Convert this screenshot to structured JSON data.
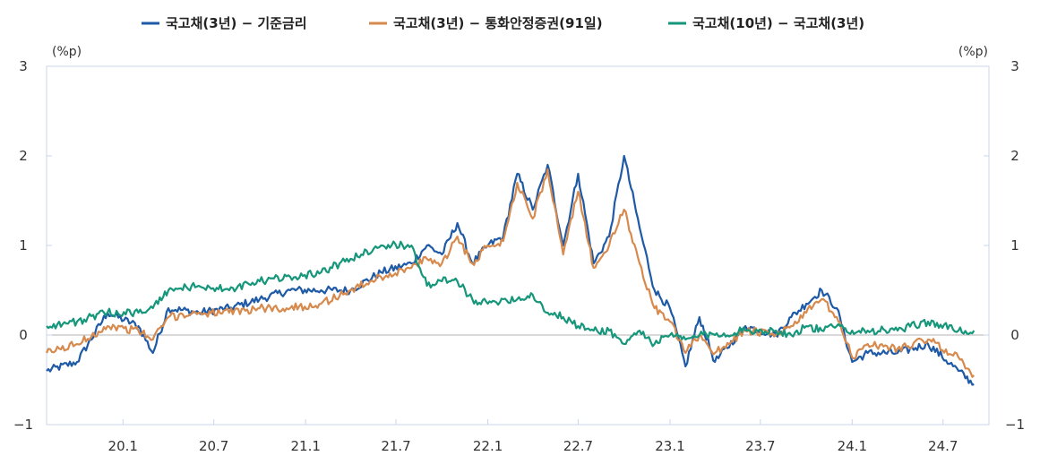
{
  "chart_data": {
    "type": "line",
    "title": "",
    "left_unit": "(%p)",
    "right_unit": "(%p)",
    "ylim": [
      -1,
      3
    ],
    "y_ticks_left": [
      "−1",
      "0",
      "1",
      "2",
      "3"
    ],
    "y_ticks_right": [
      "−1",
      "0",
      "1",
      "2",
      "3"
    ],
    "x_ticks": [
      "20.1",
      "20.7",
      "21.1",
      "21.7",
      "22.1",
      "22.7",
      "23.1",
      "23.7",
      "24.1",
      "24.7"
    ],
    "legend_position": "top",
    "x": [
      "2019-08",
      "2019-10",
      "2019-12",
      "2020-02",
      "2020-03",
      "2020-04",
      "2020-06",
      "2020-08",
      "2020-10",
      "2020-12",
      "2021-02",
      "2021-04",
      "2021-06",
      "2021-08",
      "2021-09",
      "2021-10",
      "2021-11",
      "2021-12",
      "2022-01",
      "2022-02",
      "2022-03",
      "2022-04",
      "2022-05",
      "2022-06",
      "2022-07",
      "2022-08",
      "2022-09",
      "2022-10",
      "2022-11",
      "2022-12",
      "2023-01",
      "2023-02",
      "2023-03",
      "2023-04",
      "2023-06",
      "2023-08",
      "2023-09",
      "2023-10",
      "2023-11",
      "2023-12",
      "2024-01",
      "2024-02",
      "2024-04",
      "2024-06",
      "2024-08",
      "2024-09"
    ],
    "series": [
      {
        "name": "국고채(3년) − 기준금리",
        "color": "#1f5aa6",
        "values": [
          -0.4,
          -0.3,
          0.25,
          0.1,
          -0.2,
          0.3,
          0.25,
          0.3,
          0.4,
          0.5,
          0.5,
          0.5,
          0.7,
          0.8,
          1.0,
          0.9,
          1.25,
          0.8,
          1.0,
          1.1,
          1.8,
          1.4,
          1.9,
          1.0,
          1.8,
          0.8,
          1.1,
          2.0,
          1.2,
          0.5,
          0.3,
          -0.35,
          0.2,
          -0.3,
          0.1,
          0.0,
          0.2,
          0.35,
          0.5,
          0.3,
          -0.3,
          -0.2,
          -0.2,
          -0.1,
          -0.4,
          -0.55
        ]
      },
      {
        "name": "국고채(3년) − 통화안정증권(91일)",
        "color": "#d78a4e",
        "values": [
          -0.2,
          -0.1,
          0.1,
          0.05,
          -0.05,
          0.2,
          0.25,
          0.25,
          0.3,
          0.3,
          0.35,
          0.5,
          0.65,
          0.75,
          0.85,
          0.8,
          1.1,
          0.8,
          1.0,
          1.05,
          1.7,
          1.3,
          1.85,
          0.9,
          1.6,
          0.75,
          1.0,
          1.4,
          0.8,
          0.3,
          0.15,
          -0.2,
          0.0,
          -0.2,
          0.05,
          0.0,
          0.1,
          0.25,
          0.4,
          0.2,
          -0.25,
          -0.1,
          -0.15,
          -0.05,
          -0.25,
          -0.45
        ]
      },
      {
        "name": "국고채(10년) − 국고채(3년)",
        "color": "#16967a",
        "values": [
          0.1,
          0.15,
          0.25,
          0.25,
          0.3,
          0.5,
          0.55,
          0.5,
          0.6,
          0.65,
          0.7,
          0.85,
          1.0,
          1.0,
          0.55,
          0.6,
          0.6,
          0.4,
          0.35,
          0.4,
          0.4,
          0.45,
          0.25,
          0.2,
          0.1,
          0.05,
          0.05,
          -0.1,
          0.05,
          -0.1,
          0.0,
          -0.05,
          0.0,
          0.0,
          0.05,
          0.05,
          0.0,
          0.1,
          0.05,
          0.1,
          0.05,
          0.05,
          0.05,
          0.15,
          0.05,
          0.05
        ]
      }
    ]
  }
}
